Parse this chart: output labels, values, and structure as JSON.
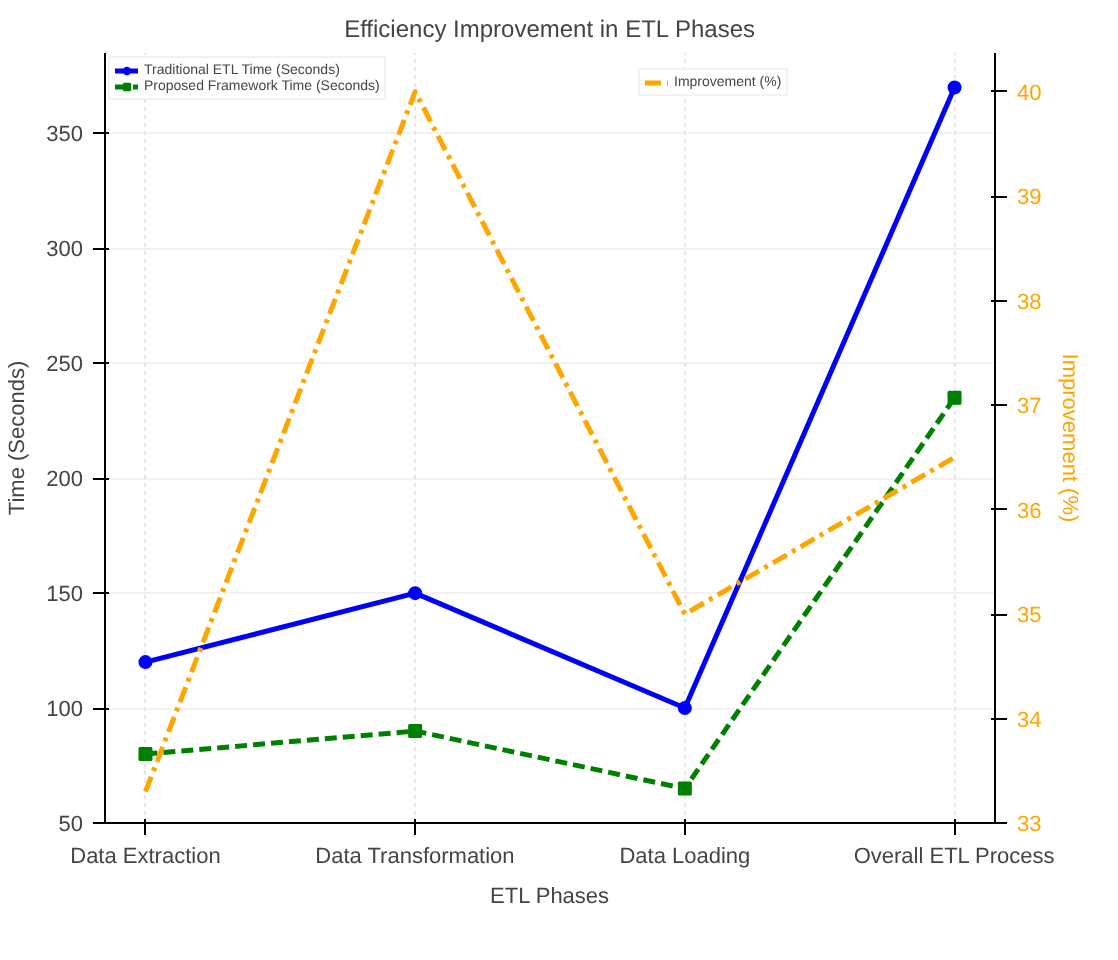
{
  "chart_data": {
    "type": "line",
    "title": "Efficiency Improvement in ETL Phases",
    "xlabel": "ETL Phases",
    "ylabel": "Time (Seconds)",
    "y2label": "Improvement (%)",
    "categories": [
      "Data Extraction",
      "Data Transformation",
      "Data Loading",
      "Overall ETL Process"
    ],
    "series": [
      {
        "name": "Traditional ETL Time (Seconds)",
        "color": "#0000ff",
        "values": [
          120,
          150,
          100,
          370
        ],
        "marker": "circle",
        "line_style": "solid"
      },
      {
        "name": "Proposed Framework Time (Seconds)",
        "color": "#008000",
        "values": [
          80,
          90,
          65,
          235
        ],
        "marker": "square",
        "line_style": "dashed"
      },
      {
        "name": "Improvement (%)",
        "color": "#ffa500",
        "values": [
          33.3,
          40,
          35,
          36.5
        ],
        "axis": "y2",
        "marker": "none",
        "line_style": "dashdot"
      }
    ],
    "ylim": [
      50,
      385
    ],
    "yticks": [
      50,
      100,
      150,
      200,
      250,
      300,
      350
    ],
    "y2lim": [
      33,
      40.37
    ],
    "y2ticks": [
      33,
      34,
      35,
      36,
      37,
      38,
      39,
      40
    ],
    "grid": true,
    "legend": "top"
  }
}
